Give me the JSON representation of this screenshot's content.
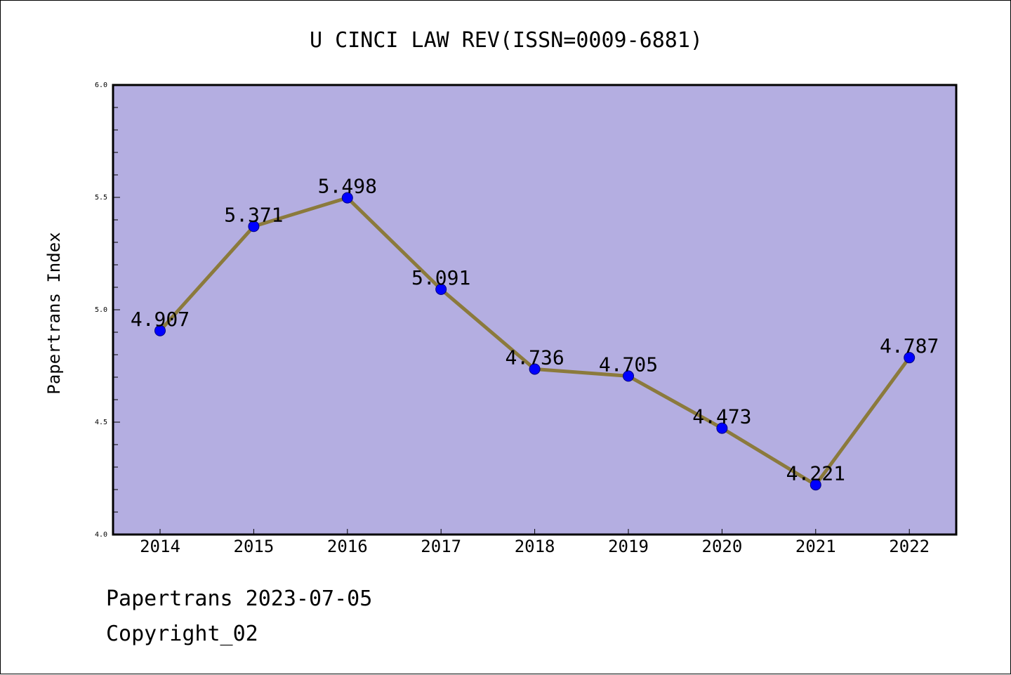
{
  "chart_data": {
    "type": "line",
    "title": "U CINCI LAW REV(ISSN=0009-6881)",
    "xlabel": "",
    "ylabel": "Papertrans Index",
    "categories": [
      "2014",
      "2015",
      "2016",
      "2017",
      "2018",
      "2019",
      "2020",
      "2021",
      "2022"
    ],
    "series": [
      {
        "values": [
          4.907,
          5.371,
          5.498,
          5.091,
          4.736,
          4.705,
          4.473,
          4.221,
          4.787
        ],
        "data_labels": [
          "4.907",
          "5.371",
          "5.498",
          "5.091",
          "4.736",
          "4.705",
          "4.473",
          "4.221",
          "4.787"
        ]
      }
    ],
    "ylim": [
      4.0,
      6.0
    ],
    "yticks": [
      "4.0",
      "4.5",
      "5.0",
      "5.5",
      "6.0"
    ],
    "grid": false,
    "colors": {
      "plot_background": "#b4aee1",
      "line": "#8b7a3c",
      "marker": "#0000ff"
    }
  },
  "footer": {
    "source": "Papertrans 2023-07-05",
    "copyright": "Copyright_02"
  }
}
